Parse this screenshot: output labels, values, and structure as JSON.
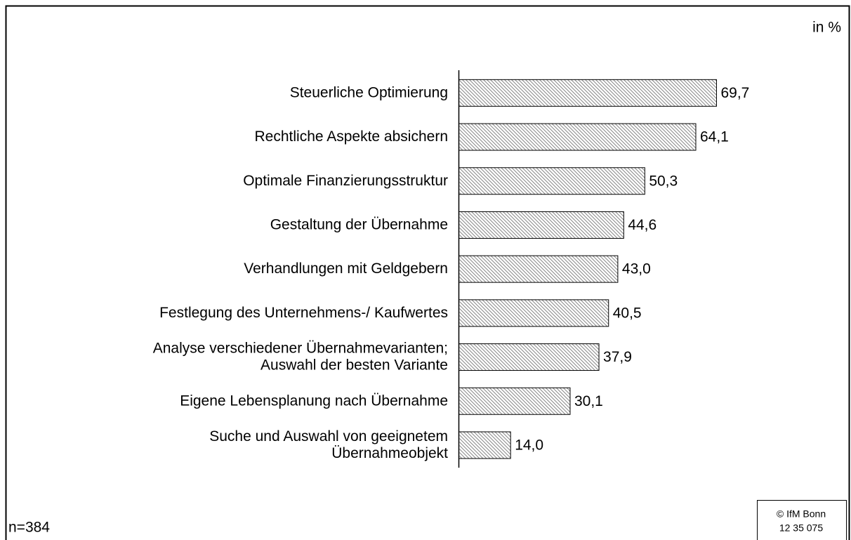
{
  "chart_data": {
    "type": "barh",
    "unit_label": "in %",
    "note": "n=384",
    "source": [
      "© IfM Bonn",
      "12 35 075"
    ],
    "categories": [
      "Steuerliche Optimierung",
      "Rechtliche Aspekte absichern",
      "Optimale Finanzierungsstruktur",
      "Gestaltung der Übernahme",
      "Verhandlungen mit Geldgebern",
      "Festlegung des Unternehmens-/ Kaufwertes",
      "Analyse verschiedener Übernahmevarianten;\nAuswahl der besten Variante",
      "Eigene Lebensplanung nach Übernahme",
      "Suche und Auswahl von geeignetem\nÜbernahmeobjekt"
    ],
    "values": [
      69.7,
      64.1,
      50.3,
      44.6,
      43.0,
      40.5,
      37.9,
      30.1,
      14.0
    ],
    "value_labels": [
      "69,7",
      "64,1",
      "50,3",
      "44,6",
      "43,0",
      "40,5",
      "37,9",
      "30,1",
      "14,0"
    ],
    "color": "#888888",
    "xlim": [
      0,
      100
    ]
  }
}
